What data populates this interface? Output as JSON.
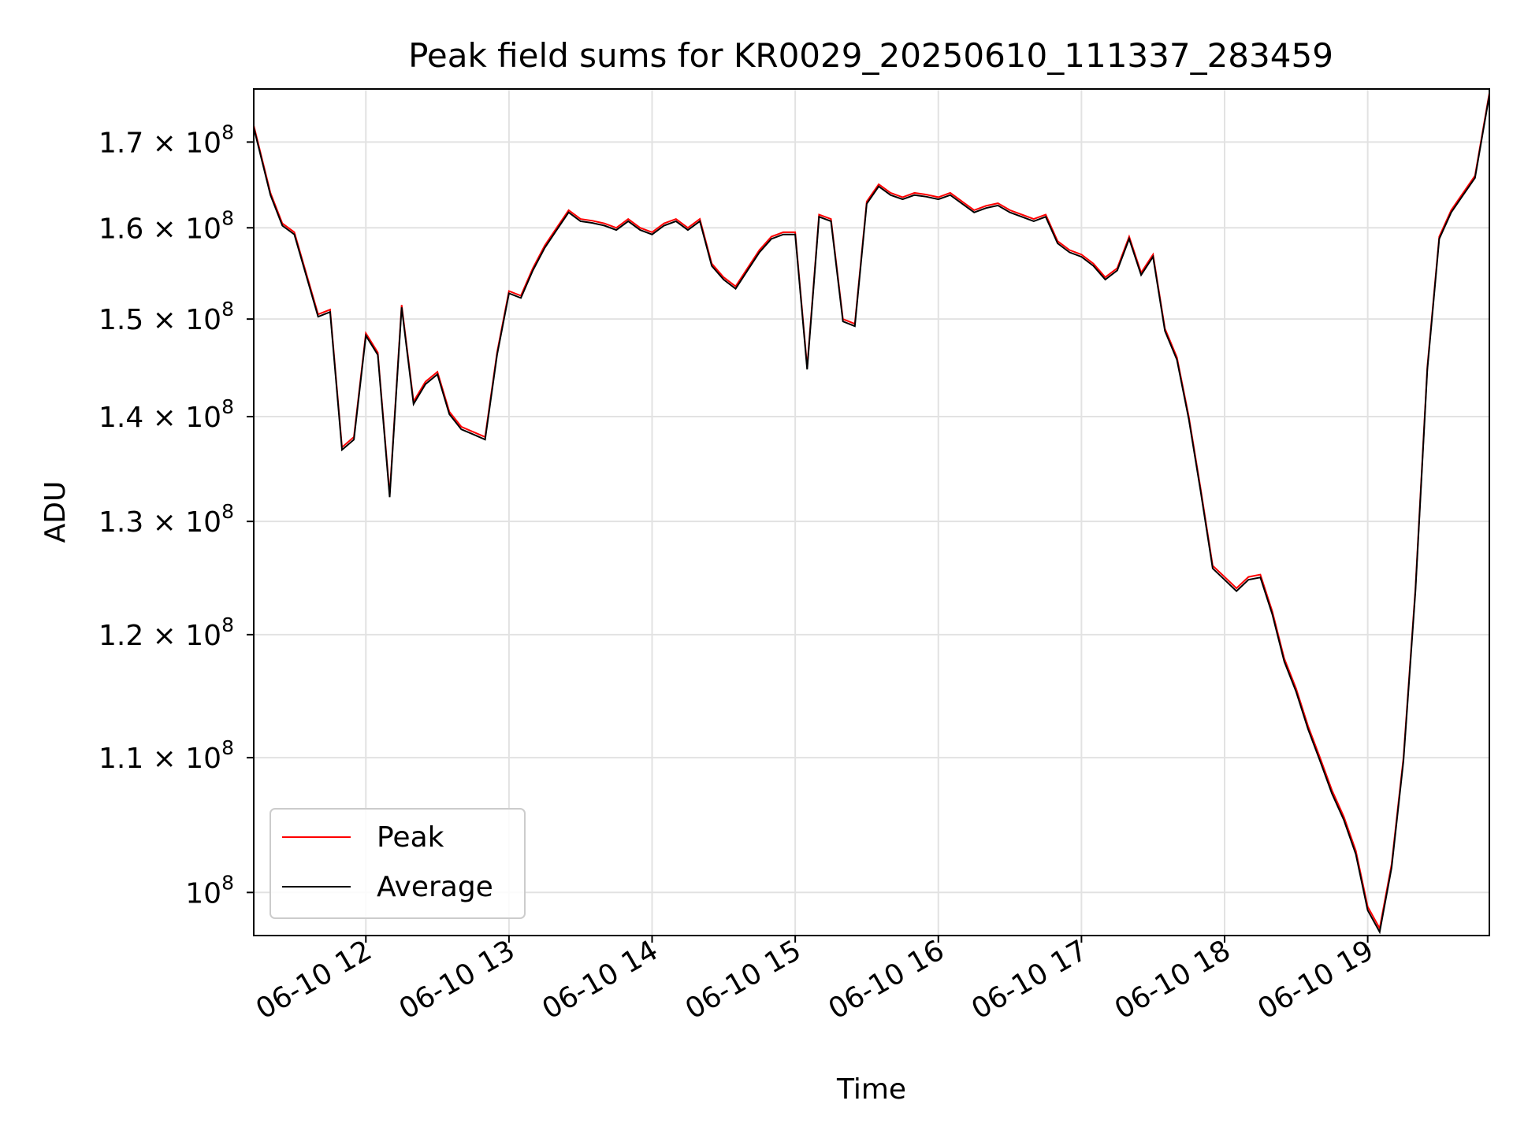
{
  "chart_data": {
    "type": "line",
    "title": "Peak field sums for KR0029_20250610_111337_283459",
    "xlabel": "Time",
    "ylabel": "ADU",
    "yscale": "log",
    "grid": true,
    "legend_position": "lower left",
    "xlim": [
      "2025-06-10T11:13:00",
      "2025-06-10T19:51:00"
    ],
    "ylim": [
      97000000,
      176500000
    ],
    "x_ticks": [
      {
        "value": "2025-06-10T12:00:00",
        "label": "06-10 12"
      },
      {
        "value": "2025-06-10T13:00:00",
        "label": "06-10 13"
      },
      {
        "value": "2025-06-10T14:00:00",
        "label": "06-10 14"
      },
      {
        "value": "2025-06-10T15:00:00",
        "label": "06-10 15"
      },
      {
        "value": "2025-06-10T16:00:00",
        "label": "06-10 16"
      },
      {
        "value": "2025-06-10T17:00:00",
        "label": "06-10 17"
      },
      {
        "value": "2025-06-10T18:00:00",
        "label": "06-10 18"
      },
      {
        "value": "2025-06-10T19:00:00",
        "label": "06-10 19"
      }
    ],
    "y_ticks": [
      {
        "value": 100000000,
        "mantissa": "",
        "exponent": "8"
      },
      {
        "value": 110000000,
        "mantissa": "1.1 × ",
        "exponent": "8"
      },
      {
        "value": 120000000,
        "mantissa": "1.2 × ",
        "exponent": "8"
      },
      {
        "value": 130000000,
        "mantissa": "1.3 × ",
        "exponent": "8"
      },
      {
        "value": 140000000,
        "mantissa": "1.4 × ",
        "exponent": "8"
      },
      {
        "value": 150000000,
        "mantissa": "1.5 × ",
        "exponent": "8"
      },
      {
        "value": 160000000,
        "mantissa": "1.6 × ",
        "exponent": "8"
      },
      {
        "value": 170000000,
        "mantissa": "1.7 × ",
        "exponent": "8"
      }
    ],
    "series": [
      {
        "name": "Peak",
        "color": "#ff0000"
      },
      {
        "name": "Average",
        "color": "#000000"
      }
    ],
    "x": [
      "2025-06-10T11:13",
      "2025-06-10T11:20",
      "2025-06-10T11:25",
      "2025-06-10T11:30",
      "2025-06-10T11:40",
      "2025-06-10T11:45",
      "2025-06-10T11:50",
      "2025-06-10T11:55",
      "2025-06-10T12:00",
      "2025-06-10T12:05",
      "2025-06-10T12:10",
      "2025-06-10T12:15",
      "2025-06-10T12:20",
      "2025-06-10T12:25",
      "2025-06-10T12:30",
      "2025-06-10T12:35",
      "2025-06-10T12:40",
      "2025-06-10T12:45",
      "2025-06-10T12:50",
      "2025-06-10T12:55",
      "2025-06-10T13:00",
      "2025-06-10T13:05",
      "2025-06-10T13:10",
      "2025-06-10T13:15",
      "2025-06-10T13:20",
      "2025-06-10T13:25",
      "2025-06-10T13:30",
      "2025-06-10T13:35",
      "2025-06-10T13:40",
      "2025-06-10T13:45",
      "2025-06-10T13:50",
      "2025-06-10T13:55",
      "2025-06-10T14:00",
      "2025-06-10T14:05",
      "2025-06-10T14:10",
      "2025-06-10T14:15",
      "2025-06-10T14:20",
      "2025-06-10T14:25",
      "2025-06-10T14:30",
      "2025-06-10T14:35",
      "2025-06-10T14:40",
      "2025-06-10T14:45",
      "2025-06-10T14:50",
      "2025-06-10T14:55",
      "2025-06-10T15:00",
      "2025-06-10T15:05",
      "2025-06-10T15:10",
      "2025-06-10T15:15",
      "2025-06-10T15:20",
      "2025-06-10T15:25",
      "2025-06-10T15:30",
      "2025-06-10T15:35",
      "2025-06-10T15:40",
      "2025-06-10T15:45",
      "2025-06-10T15:50",
      "2025-06-10T15:55",
      "2025-06-10T16:00",
      "2025-06-10T16:05",
      "2025-06-10T16:10",
      "2025-06-10T16:15",
      "2025-06-10T16:20",
      "2025-06-10T16:25",
      "2025-06-10T16:30",
      "2025-06-10T16:35",
      "2025-06-10T16:40",
      "2025-06-10T16:45",
      "2025-06-10T16:50",
      "2025-06-10T16:55",
      "2025-06-10T17:00",
      "2025-06-10T17:05",
      "2025-06-10T17:10",
      "2025-06-10T17:15",
      "2025-06-10T17:20",
      "2025-06-10T17:25",
      "2025-06-10T17:30",
      "2025-06-10T17:35",
      "2025-06-10T17:40",
      "2025-06-10T17:45",
      "2025-06-10T17:50",
      "2025-06-10T17:55",
      "2025-06-10T18:00",
      "2025-06-10T18:05",
      "2025-06-10T18:10",
      "2025-06-10T18:15",
      "2025-06-10T18:20",
      "2025-06-10T18:25",
      "2025-06-10T18:30",
      "2025-06-10T18:35",
      "2025-06-10T18:40",
      "2025-06-10T18:45",
      "2025-06-10T18:50",
      "2025-06-10T18:55",
      "2025-06-10T19:00",
      "2025-06-10T19:05",
      "2025-06-10T19:10",
      "2025-06-10T19:15",
      "2025-06-10T19:20",
      "2025-06-10T19:25",
      "2025-06-10T19:30",
      "2025-06-10T19:35",
      "2025-06-10T19:40",
      "2025-06-10T19:45",
      "2025-06-10T19:51"
    ],
    "values": [
      172000000,
      164000000,
      160500000,
      159500000,
      150500000,
      151000000,
      137000000,
      138000000,
      148500000,
      146500000,
      132500000,
      151500000,
      141500000,
      143500000,
      144500000,
      140500000,
      139000000,
      138500000,
      138000000,
      146500000,
      153000000,
      152500000,
      155500000,
      158000000,
      160000000,
      162000000,
      161000000,
      160800000,
      160500000,
      160000000,
      161000000,
      160000000,
      159500000,
      160500000,
      161000000,
      160000000,
      161000000,
      156000000,
      154500000,
      153500000,
      155500000,
      157500000,
      159000000,
      159500000,
      159500000,
      145000000,
      161500000,
      161000000,
      150000000,
      149500000,
      163000000,
      165000000,
      164000000,
      163500000,
      164000000,
      163800000,
      163500000,
      164000000,
      163000000,
      162000000,
      162500000,
      162800000,
      162000000,
      161500000,
      161000000,
      161500000,
      158500000,
      157500000,
      157000000,
      156000000,
      154500000,
      155500000,
      159000000,
      155000000,
      157000000,
      149000000,
      146000000,
      140000000,
      133000000,
      126000000,
      125000000,
      124000000,
      125000000,
      125200000,
      122000000,
      118000000,
      115500000,
      112500000,
      110000000,
      107500000,
      105500000,
      103000000,
      99000000,
      97500000,
      102000000,
      110000000,
      124000000,
      145000000,
      159000000,
      162000000,
      164000000,
      166000000,
      176000000
    ],
    "average_offset": -250000
  }
}
